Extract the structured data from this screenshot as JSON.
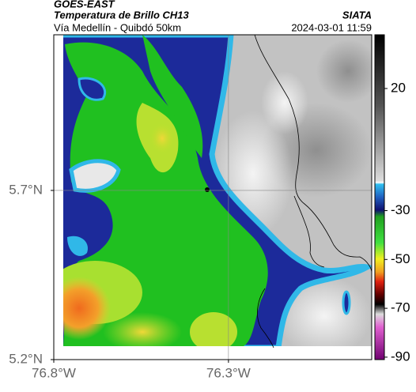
{
  "header": {
    "title": "GOES-EAST",
    "subtitle": "Temperatura de Brillo CH13",
    "route": "Vía Medellín - Quibdó 50km",
    "source": "SIATA",
    "timestamp": "2024-03-01 11:59"
  },
  "map": {
    "xlim": [
      -76.8,
      -75.89
    ],
    "ylim": [
      5.2,
      6.16
    ],
    "xticks": [
      {
        "value": -76.8,
        "label": "76.8°W"
      },
      {
        "value": -76.3,
        "label": "76.3°W"
      }
    ],
    "yticks": [
      {
        "value": 5.2,
        "label": "5.2°N"
      },
      {
        "value": 5.7,
        "label": "5.7°N"
      }
    ],
    "grid": true
  },
  "colorbar": {
    "clim": [
      -91,
      42
    ],
    "ticks": [
      20,
      -30,
      -50,
      -70,
      -90
    ]
  }
}
